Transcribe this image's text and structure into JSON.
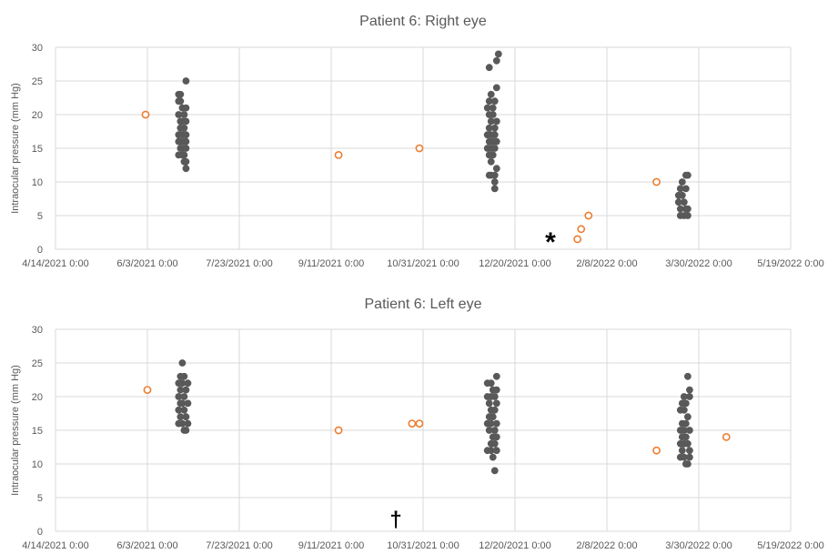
{
  "chart_data": [
    {
      "type": "scatter",
      "title": "Patient 6: Right eye",
      "ylabel": "Intraocular pressure (mm Hg)",
      "xlabel": "",
      "xlim": [
        "2021-04-14",
        "2022-05-19"
      ],
      "ylim": [
        0,
        30
      ],
      "x_tick_labels": [
        "4/14/2021 0:00",
        "6/3/2021 0:00",
        "7/23/2021 0:00",
        "9/11/2021 0:00",
        "10/31/2021 0:00",
        "12/20/2021 0:00",
        "2/8/2022 0:00",
        "3/30/2022 0:00",
        "5/19/2022 0:00"
      ],
      "y_tick_labels": [
        "0",
        "5",
        "10",
        "15",
        "20",
        "25",
        "30"
      ],
      "grid": "vertical and horizontal",
      "legend": "none",
      "annotation": "*",
      "series": [
        {
          "marker": "filled-circle",
          "color": "#595959",
          "points": [
            [
              "2021-06-20",
              23
            ],
            [
              "2021-06-21",
              23
            ],
            [
              "2021-06-24",
              25
            ],
            [
              "2021-06-20",
              22
            ],
            [
              "2021-06-21",
              22
            ],
            [
              "2021-06-22",
              21
            ],
            [
              "2021-06-24",
              21
            ],
            [
              "2021-06-20",
              20
            ],
            [
              "2021-06-23",
              20
            ],
            [
              "2021-06-21",
              19
            ],
            [
              "2021-06-22",
              19
            ],
            [
              "2021-06-24",
              19
            ],
            [
              "2021-06-21",
              18
            ],
            [
              "2021-06-23",
              18
            ],
            [
              "2021-06-20",
              17
            ],
            [
              "2021-06-22",
              17
            ],
            [
              "2021-06-24",
              17
            ],
            [
              "2021-06-20",
              16
            ],
            [
              "2021-06-21",
              16
            ],
            [
              "2021-06-23",
              16
            ],
            [
              "2021-06-24",
              16
            ],
            [
              "2021-06-21",
              15
            ],
            [
              "2021-06-22",
              15
            ],
            [
              "2021-06-24",
              15
            ],
            [
              "2021-06-20",
              14
            ],
            [
              "2021-06-22",
              14
            ],
            [
              "2021-06-23",
              14
            ],
            [
              "2021-06-23",
              13
            ],
            [
              "2021-06-24",
              13
            ],
            [
              "2021-06-24",
              12
            ],
            [
              "2021-12-06",
              27
            ],
            [
              "2021-12-10",
              28
            ],
            [
              "2021-12-11",
              29
            ],
            [
              "2021-12-10",
              24
            ],
            [
              "2021-12-07",
              23
            ],
            [
              "2021-12-06",
              22
            ],
            [
              "2021-12-09",
              22
            ],
            [
              "2021-12-05",
              21
            ],
            [
              "2021-12-08",
              21
            ],
            [
              "2021-12-06",
              20
            ],
            [
              "2021-12-08",
              20
            ],
            [
              "2021-12-07",
              19
            ],
            [
              "2021-12-10",
              19
            ],
            [
              "2021-12-06",
              18
            ],
            [
              "2021-12-09",
              18
            ],
            [
              "2021-12-05",
              17
            ],
            [
              "2021-12-07",
              17
            ],
            [
              "2021-12-09",
              17
            ],
            [
              "2021-12-06",
              16
            ],
            [
              "2021-12-08",
              16
            ],
            [
              "2021-12-10",
              16
            ],
            [
              "2021-12-05",
              15
            ],
            [
              "2021-12-07",
              15
            ],
            [
              "2021-12-09",
              15
            ],
            [
              "2021-12-06",
              14
            ],
            [
              "2021-12-08",
              14
            ],
            [
              "2021-12-07",
              13
            ],
            [
              "2021-12-10",
              12
            ],
            [
              "2021-12-06",
              11
            ],
            [
              "2021-12-07",
              11
            ],
            [
              "2021-12-09",
              11
            ],
            [
              "2021-12-09",
              10
            ],
            [
              "2021-12-09",
              9
            ],
            [
              "2022-03-21",
              10
            ],
            [
              "2022-03-23",
              11
            ],
            [
              "2022-03-24",
              11
            ],
            [
              "2022-03-20",
              9
            ],
            [
              "2022-03-23",
              9
            ],
            [
              "2022-03-19",
              8
            ],
            [
              "2022-03-21",
              8
            ],
            [
              "2022-03-19",
              7
            ],
            [
              "2022-03-22",
              7
            ],
            [
              "2022-03-20",
              6
            ],
            [
              "2022-03-23",
              6
            ],
            [
              "2022-03-24",
              6
            ],
            [
              "2022-03-20",
              5
            ],
            [
              "2022-03-22",
              5
            ],
            [
              "2022-03-24",
              5
            ]
          ]
        },
        {
          "marker": "open-circle",
          "color": "#ed7d31",
          "points": [
            [
              "2021-06-02",
              20
            ],
            [
              "2021-09-15",
              14
            ],
            [
              "2021-10-29",
              15
            ],
            [
              "2022-01-23",
              1.5
            ],
            [
              "2022-01-25",
              3
            ],
            [
              "2022-01-29",
              5
            ],
            [
              "2022-03-07",
              10
            ]
          ]
        }
      ]
    },
    {
      "type": "scatter",
      "title": "Patient 6: Left eye",
      "ylabel": "Intraocular pressure (mm Hg)",
      "xlabel": "",
      "xlim": [
        "2021-04-14",
        "2022-05-19"
      ],
      "ylim": [
        0,
        30
      ],
      "x_tick_labels": [
        "4/14/2021 0:00",
        "6/3/2021 0:00",
        "7/23/2021 0:00",
        "9/11/2021 0:00",
        "10/31/2021 0:00",
        "12/20/2021 0:00",
        "2/8/2022 0:00",
        "3/30/2022 0:00",
        "5/19/2022 0:00"
      ],
      "y_tick_labels": [
        "0",
        "5",
        "10",
        "15",
        "20",
        "25",
        "30"
      ],
      "grid": "vertical and horizontal",
      "legend": "none",
      "annotation": "†",
      "series": [
        {
          "marker": "filled-circle",
          "color": "#595959",
          "points": [
            [
              "2021-06-22",
              25
            ],
            [
              "2021-06-21",
              23
            ],
            [
              "2021-06-23",
              23
            ],
            [
              "2021-06-20",
              22
            ],
            [
              "2021-06-22",
              22
            ],
            [
              "2021-06-25",
              22
            ],
            [
              "2021-06-21",
              21
            ],
            [
              "2021-06-24",
              21
            ],
            [
              "2021-06-20",
              20
            ],
            [
              "2021-06-23",
              20
            ],
            [
              "2021-06-21",
              19
            ],
            [
              "2021-06-22",
              19
            ],
            [
              "2021-06-25",
              19
            ],
            [
              "2021-06-20",
              18
            ],
            [
              "2021-06-23",
              18
            ],
            [
              "2021-06-21",
              17
            ],
            [
              "2021-06-24",
              17
            ],
            [
              "2021-06-20",
              16
            ],
            [
              "2021-06-22",
              16
            ],
            [
              "2021-06-25",
              16
            ],
            [
              "2021-06-23",
              15
            ],
            [
              "2021-06-24",
              15
            ],
            [
              "2021-12-10",
              23
            ],
            [
              "2021-12-05",
              22
            ],
            [
              "2021-12-07",
              22
            ],
            [
              "2021-12-08",
              21
            ],
            [
              "2021-12-10",
              21
            ],
            [
              "2021-12-05",
              20
            ],
            [
              "2021-12-07",
              20
            ],
            [
              "2021-12-09",
              20
            ],
            [
              "2021-12-06",
              19
            ],
            [
              "2021-12-10",
              19
            ],
            [
              "2021-12-07",
              18
            ],
            [
              "2021-12-09",
              18
            ],
            [
              "2021-12-06",
              17
            ],
            [
              "2021-12-08",
              17
            ],
            [
              "2021-12-05",
              16
            ],
            [
              "2021-12-07",
              16
            ],
            [
              "2021-12-10",
              16
            ],
            [
              "2021-12-06",
              15
            ],
            [
              "2021-12-09",
              15
            ],
            [
              "2021-12-08",
              14
            ],
            [
              "2021-12-10",
              14
            ],
            [
              "2021-12-07",
              13
            ],
            [
              "2021-12-09",
              13
            ],
            [
              "2021-12-05",
              12
            ],
            [
              "2021-12-07",
              12
            ],
            [
              "2021-12-10",
              12
            ],
            [
              "2021-12-08",
              11
            ],
            [
              "2021-12-09",
              9
            ],
            [
              "2022-03-24",
              23
            ],
            [
              "2022-03-25",
              21
            ],
            [
              "2022-03-22",
              20
            ],
            [
              "2022-03-25",
              20
            ],
            [
              "2022-03-21",
              19
            ],
            [
              "2022-03-23",
              19
            ],
            [
              "2022-03-20",
              18
            ],
            [
              "2022-03-22",
              18
            ],
            [
              "2022-03-24",
              17
            ],
            [
              "2022-03-21",
              16
            ],
            [
              "2022-03-23",
              16
            ],
            [
              "2022-03-20",
              15
            ],
            [
              "2022-03-22",
              15
            ],
            [
              "2022-03-25",
              15
            ],
            [
              "2022-03-21",
              14
            ],
            [
              "2022-03-23",
              14
            ],
            [
              "2022-03-20",
              13
            ],
            [
              "2022-03-22",
              13
            ],
            [
              "2022-03-24",
              13
            ],
            [
              "2022-03-21",
              12
            ],
            [
              "2022-03-25",
              12
            ],
            [
              "2022-03-20",
              11
            ],
            [
              "2022-03-22",
              11
            ],
            [
              "2022-03-25",
              11
            ],
            [
              "2022-03-23",
              10
            ],
            [
              "2022-03-24",
              10
            ]
          ]
        },
        {
          "marker": "open-circle",
          "color": "#ed7d31",
          "points": [
            [
              "2021-06-03",
              21
            ],
            [
              "2021-09-15",
              15
            ],
            [
              "2021-10-25",
              16
            ],
            [
              "2021-10-29",
              16
            ],
            [
              "2022-03-07",
              12
            ],
            [
              "2022-04-14",
              14
            ]
          ]
        }
      ]
    }
  ]
}
